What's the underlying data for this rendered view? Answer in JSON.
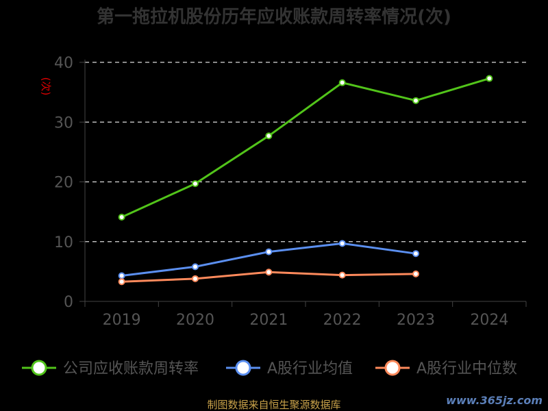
{
  "chart_data": {
    "type": "line",
    "title": "第一拖拉机股份历年应收账款周转率情况(次)",
    "ylabel": "(次)",
    "xlabel": "",
    "categories": [
      "2019",
      "2020",
      "2021",
      "2022",
      "2023",
      "2024"
    ],
    "ylim": [
      0,
      40
    ],
    "yticks": [
      0,
      10,
      20,
      30,
      40
    ],
    "grid": true,
    "legend_position": "bottom",
    "series": [
      {
        "name": "公司应收账款周转率",
        "color": "#52c41a",
        "values": [
          14.1,
          19.7,
          27.7,
          36.6,
          33.6,
          37.3
        ]
      },
      {
        "name": "A股行业均值",
        "color": "#5b8ff0",
        "values": [
          4.3,
          5.8,
          8.3,
          9.7,
          8.0,
          null
        ]
      },
      {
        "name": "A股行业中位数",
        "color": "#ff8a5c",
        "values": [
          3.3,
          3.8,
          4.9,
          4.4,
          4.6,
          null
        ]
      }
    ]
  },
  "footer": {
    "source": "制图数据来自恒生聚源数据库",
    "watermark": "www.365jz.com"
  }
}
